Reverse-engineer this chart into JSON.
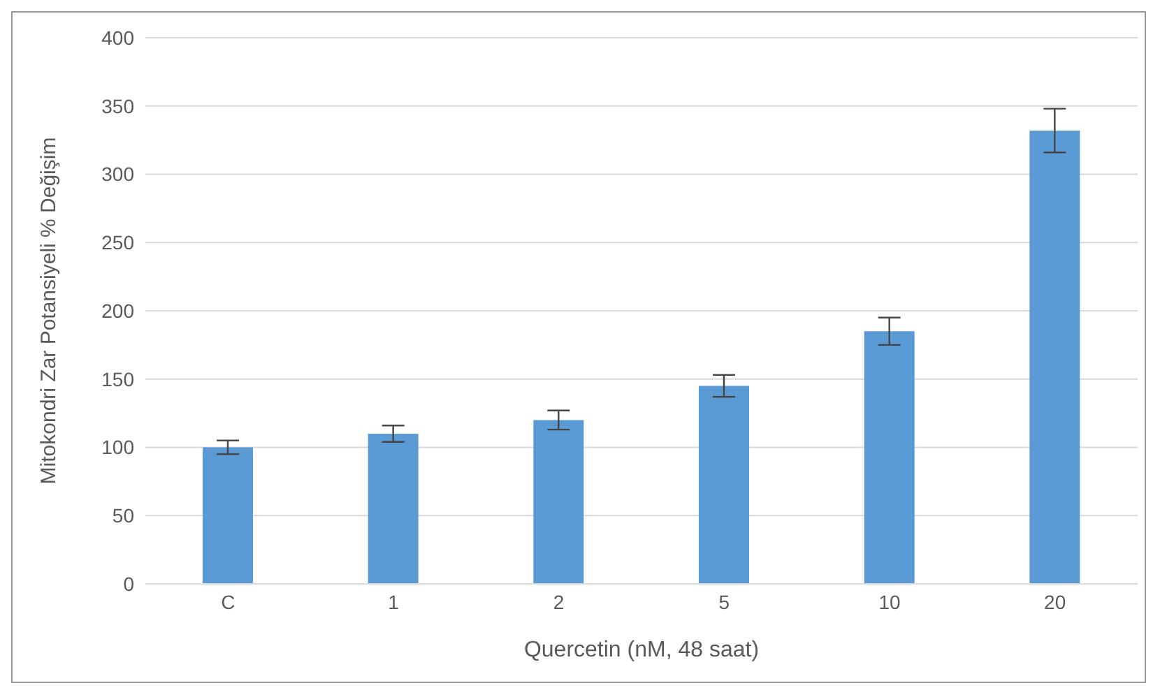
{
  "chart_data": {
    "type": "bar",
    "xlabel": "Quercetin (nM, 48 saat)",
    "ylabel": "Mitokondri Zar Potansiyeli  % Değişim",
    "categories": [
      "C",
      "1",
      "2",
      "5",
      "10",
      "20"
    ],
    "values": [
      100,
      110,
      120,
      145,
      185,
      332
    ],
    "errors": [
      5,
      6,
      7,
      8,
      10,
      16
    ],
    "color": "#5b9bd5",
    "ylim": [
      0,
      400
    ],
    "yticks": [
      0,
      50,
      100,
      150,
      200,
      250,
      300,
      350,
      400
    ],
    "grid": "y"
  }
}
